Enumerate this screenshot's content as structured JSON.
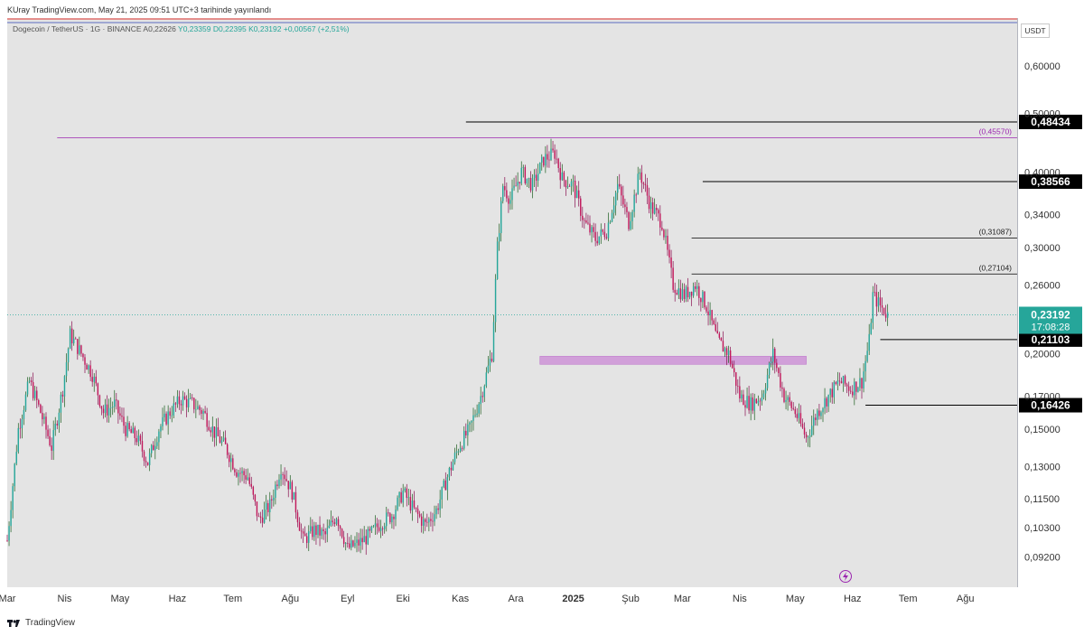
{
  "header": {
    "publish_line": "KUray TradingView.com, May 21, 2025 09:51 UTC+3 tarihinde yayınlandı"
  },
  "legend": {
    "symbol": "Dogecoin / TetherUS · 1G · BINANCE",
    "open": "A0,22626",
    "high": "Y0,23359",
    "low": "D0,22395",
    "close": "K0,23192",
    "change": "+0,00567 (+2,51%)"
  },
  "currency": "USDT",
  "footer": {
    "brand": "TradingView"
  },
  "colors": {
    "up": "#26a69a",
    "down": "#c2185b",
    "wick_up": "#1b5e20",
    "wick_down": "#880e4f",
    "purple": "#9c27b0",
    "zone": "#ce93d8",
    "pane": "#e4e4e4"
  },
  "chart_data": {
    "type": "candlestick",
    "scale": "log",
    "ylim": [
      0.082,
      0.72
    ],
    "y_ticks": [
      {
        "value": 0.6,
        "label": "0,60000"
      },
      {
        "value": 0.5,
        "label": "0,50000"
      },
      {
        "value": 0.4,
        "label": "0,40000"
      },
      {
        "value": 0.34,
        "label": "0,34000"
      },
      {
        "value": 0.3,
        "label": "0,30000"
      },
      {
        "value": 0.26,
        "label": "0,26000"
      },
      {
        "value": 0.2,
        "label": "0,20000"
      },
      {
        "value": 0.17,
        "label": "0,17000"
      },
      {
        "value": 0.15,
        "label": "0,15000"
      },
      {
        "value": 0.13,
        "label": "0,13000"
      },
      {
        "value": 0.115,
        "label": "0,11500"
      },
      {
        "value": 0.103,
        "label": "0,10300"
      },
      {
        "value": 0.092,
        "label": "0,09200"
      }
    ],
    "x_ticks": [
      "Mar",
      "Nis",
      "May",
      "Haz",
      "Tem",
      "Ağu",
      "Eyl",
      "Eki",
      "Kas",
      "Ara",
      "2025",
      "Şub",
      "Mar",
      "Nis",
      "May",
      "Haz",
      "Tem",
      "Ağu"
    ],
    "x_tick_bold": [
      false,
      false,
      false,
      false,
      false,
      false,
      false,
      false,
      false,
      false,
      true,
      false,
      false,
      false,
      false,
      false,
      false,
      false
    ],
    "x_tick_day": [
      0,
      31,
      61,
      92,
      122,
      153,
      184,
      214,
      245,
      275,
      306,
      337,
      365,
      396,
      426,
      457,
      487,
      518
    ],
    "x_range_day": [
      0,
      546
    ],
    "price_path": [
      {
        "day": 0,
        "price": 0.098
      },
      {
        "day": 6,
        "price": 0.15
      },
      {
        "day": 12,
        "price": 0.18
      },
      {
        "day": 18,
        "price": 0.16
      },
      {
        "day": 24,
        "price": 0.14
      },
      {
        "day": 30,
        "price": 0.175
      },
      {
        "day": 34,
        "price": 0.215
      },
      {
        "day": 40,
        "price": 0.2
      },
      {
        "day": 46,
        "price": 0.185
      },
      {
        "day": 52,
        "price": 0.16
      },
      {
        "day": 58,
        "price": 0.165
      },
      {
        "day": 64,
        "price": 0.15
      },
      {
        "day": 70,
        "price": 0.145
      },
      {
        "day": 76,
        "price": 0.132
      },
      {
        "day": 82,
        "price": 0.15
      },
      {
        "day": 88,
        "price": 0.16
      },
      {
        "day": 94,
        "price": 0.168
      },
      {
        "day": 100,
        "price": 0.165
      },
      {
        "day": 106,
        "price": 0.16
      },
      {
        "day": 112,
        "price": 0.148
      },
      {
        "day": 118,
        "price": 0.14
      },
      {
        "day": 124,
        "price": 0.128
      },
      {
        "day": 130,
        "price": 0.125
      },
      {
        "day": 136,
        "price": 0.106
      },
      {
        "day": 142,
        "price": 0.112
      },
      {
        "day": 148,
        "price": 0.13
      },
      {
        "day": 154,
        "price": 0.118
      },
      {
        "day": 160,
        "price": 0.098
      },
      {
        "day": 166,
        "price": 0.102
      },
      {
        "day": 172,
        "price": 0.1
      },
      {
        "day": 178,
        "price": 0.108
      },
      {
        "day": 184,
        "price": 0.095
      },
      {
        "day": 190,
        "price": 0.097
      },
      {
        "day": 196,
        "price": 0.1
      },
      {
        "day": 202,
        "price": 0.105
      },
      {
        "day": 208,
        "price": 0.108
      },
      {
        "day": 214,
        "price": 0.118
      },
      {
        "day": 220,
        "price": 0.11
      },
      {
        "day": 226,
        "price": 0.104
      },
      {
        "day": 232,
        "price": 0.11
      },
      {
        "day": 238,
        "price": 0.125
      },
      {
        "day": 244,
        "price": 0.14
      },
      {
        "day": 250,
        "price": 0.15
      },
      {
        "day": 256,
        "price": 0.17
      },
      {
        "day": 262,
        "price": 0.2
      },
      {
        "day": 265,
        "price": 0.3
      },
      {
        "day": 268,
        "price": 0.38
      },
      {
        "day": 272,
        "price": 0.36
      },
      {
        "day": 278,
        "price": 0.4
      },
      {
        "day": 284,
        "price": 0.38
      },
      {
        "day": 290,
        "price": 0.42
      },
      {
        "day": 296,
        "price": 0.43
      },
      {
        "day": 300,
        "price": 0.39
      },
      {
        "day": 306,
        "price": 0.38
      },
      {
        "day": 312,
        "price": 0.33
      },
      {
        "day": 318,
        "price": 0.31
      },
      {
        "day": 324,
        "price": 0.32
      },
      {
        "day": 330,
        "price": 0.38
      },
      {
        "day": 336,
        "price": 0.33
      },
      {
        "day": 342,
        "price": 0.4
      },
      {
        "day": 348,
        "price": 0.35
      },
      {
        "day": 354,
        "price": 0.33
      },
      {
        "day": 360,
        "price": 0.26
      },
      {
        "day": 366,
        "price": 0.25
      },
      {
        "day": 372,
        "price": 0.26
      },
      {
        "day": 378,
        "price": 0.24
      },
      {
        "day": 384,
        "price": 0.21
      },
      {
        "day": 390,
        "price": 0.2
      },
      {
        "day": 396,
        "price": 0.17
      },
      {
        "day": 402,
        "price": 0.165
      },
      {
        "day": 408,
        "price": 0.17
      },
      {
        "day": 414,
        "price": 0.2
      },
      {
        "day": 420,
        "price": 0.17
      },
      {
        "day": 426,
        "price": 0.16
      },
      {
        "day": 432,
        "price": 0.145
      },
      {
        "day": 438,
        "price": 0.16
      },
      {
        "day": 444,
        "price": 0.17
      },
      {
        "day": 450,
        "price": 0.18
      },
      {
        "day": 456,
        "price": 0.175
      },
      {
        "day": 462,
        "price": 0.18
      },
      {
        "day": 466,
        "price": 0.21
      },
      {
        "day": 468,
        "price": 0.25
      },
      {
        "day": 472,
        "price": 0.24
      },
      {
        "day": 476,
        "price": 0.23192
      }
    ],
    "levels": [
      {
        "name": "0,48434",
        "price": 0.48434,
        "style": "black-box",
        "from_day": 248
      },
      {
        "name": "0,38566",
        "price": 0.38566,
        "style": "black-box",
        "from_day": 376
      },
      {
        "name": "0,21103",
        "price": 0.21103,
        "style": "black-box",
        "from_day": 472
      },
      {
        "name": "0,16426",
        "price": 0.16426,
        "style": "black-box",
        "from_day": 464
      }
    ],
    "level_labels": [
      {
        "label": "(0,45570)",
        "price": 0.4557,
        "color": "purple",
        "from_day": 27
      },
      {
        "label": "(0,31087)",
        "price": 0.31087,
        "color": "black",
        "from_day": 370
      },
      {
        "label": "(0,27104)",
        "price": 0.27104,
        "color": "black",
        "from_day": 370
      }
    ],
    "last_price": {
      "label": "0,23192",
      "countdown": "17:08:28",
      "price": 0.23192
    },
    "zone": {
      "price_top": 0.198,
      "price_bottom": 0.192,
      "from_day": 288,
      "to_day": 432
    },
    "title": "Dogecoin / TetherUS · 1G · BINANCE"
  }
}
